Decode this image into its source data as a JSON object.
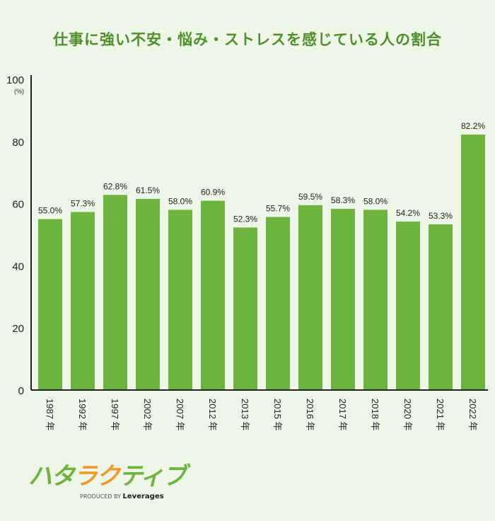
{
  "title": "仕事に強い不安・悩み・ストレスを感じている人の割合",
  "colors": {
    "bar": "#6db33f",
    "title": "#4f8f2b",
    "background": "#eef6e7",
    "logo_green": "#6db33f",
    "logo_orange": "#ee9a2e"
  },
  "logo": {
    "text": "ハタラクティブ",
    "produced_by": "PRODUCED BY",
    "brand": "Leverages"
  },
  "chart_data": {
    "type": "bar",
    "title": "仕事に強い不安・悩み・ストレスを感じている人の割合",
    "ylabel": "(%)",
    "ylim": [
      0,
      100
    ],
    "yticks": [
      0,
      20,
      40,
      60,
      80,
      100
    ],
    "grid": false,
    "categories": [
      "1987 年",
      "1992 年",
      "1997 年",
      "2002 年",
      "2007 年",
      "2012 年",
      "2013 年",
      "2015 年",
      "2016 年",
      "2017 年",
      "2018 年",
      "2020 年",
      "2021 年",
      "2022 年"
    ],
    "values": [
      55.0,
      57.3,
      62.8,
      61.5,
      58.0,
      60.9,
      52.3,
      55.7,
      59.5,
      58.3,
      58.0,
      54.2,
      53.3,
      82.2
    ],
    "data_labels": [
      "55.0%",
      "57.3%",
      "62.8%",
      "61.5%",
      "58.0%",
      "60.9%",
      "52.3%",
      "55.7%",
      "59.5%",
      "58.3%",
      "58.0%",
      "54.2%",
      "53.3%",
      "82.2%"
    ]
  }
}
